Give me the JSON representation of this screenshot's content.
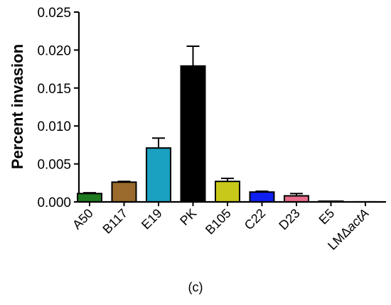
{
  "caption": "(c)",
  "chart_data": {
    "type": "bar",
    "title": "",
    "xlabel": "",
    "ylabel": "Percent invasion",
    "ylim": [
      0,
      0.025
    ],
    "yticks": [
      "0.000",
      "0.005",
      "0.010",
      "0.015",
      "0.020",
      "0.025"
    ],
    "grid": false,
    "legend": "none",
    "categories": [
      {
        "label": "A50",
        "label_italic_suffix": ""
      },
      {
        "label": "B117",
        "label_italic_suffix": ""
      },
      {
        "label": "E19",
        "label_italic_suffix": ""
      },
      {
        "label": "PK",
        "label_italic_suffix": ""
      },
      {
        "label": "B105",
        "label_italic_suffix": ""
      },
      {
        "label": "C22",
        "label_italic_suffix": ""
      },
      {
        "label": "D23",
        "label_italic_suffix": ""
      },
      {
        "label": "E5",
        "label_italic_suffix": ""
      },
      {
        "label": "LMΔ",
        "label_italic_suffix": "actA"
      }
    ],
    "values": [
      0.0011,
      0.0026,
      0.0071,
      0.0179,
      0.0027,
      0.0013,
      0.0008,
      0.0001,
      0.0
    ],
    "errors": [
      0.0001,
      0.0001,
      0.0013,
      0.0026,
      0.0004,
      0.0001,
      0.0003,
      0.0,
      0.0
    ],
    "colors": [
      "#1e7a1e",
      "#9a6b2c",
      "#1aa0c0",
      "#000000",
      "#c8c81a",
      "#1020f0",
      "#e86c8c",
      "#dcdcdc",
      "#dcdcdc"
    ]
  }
}
